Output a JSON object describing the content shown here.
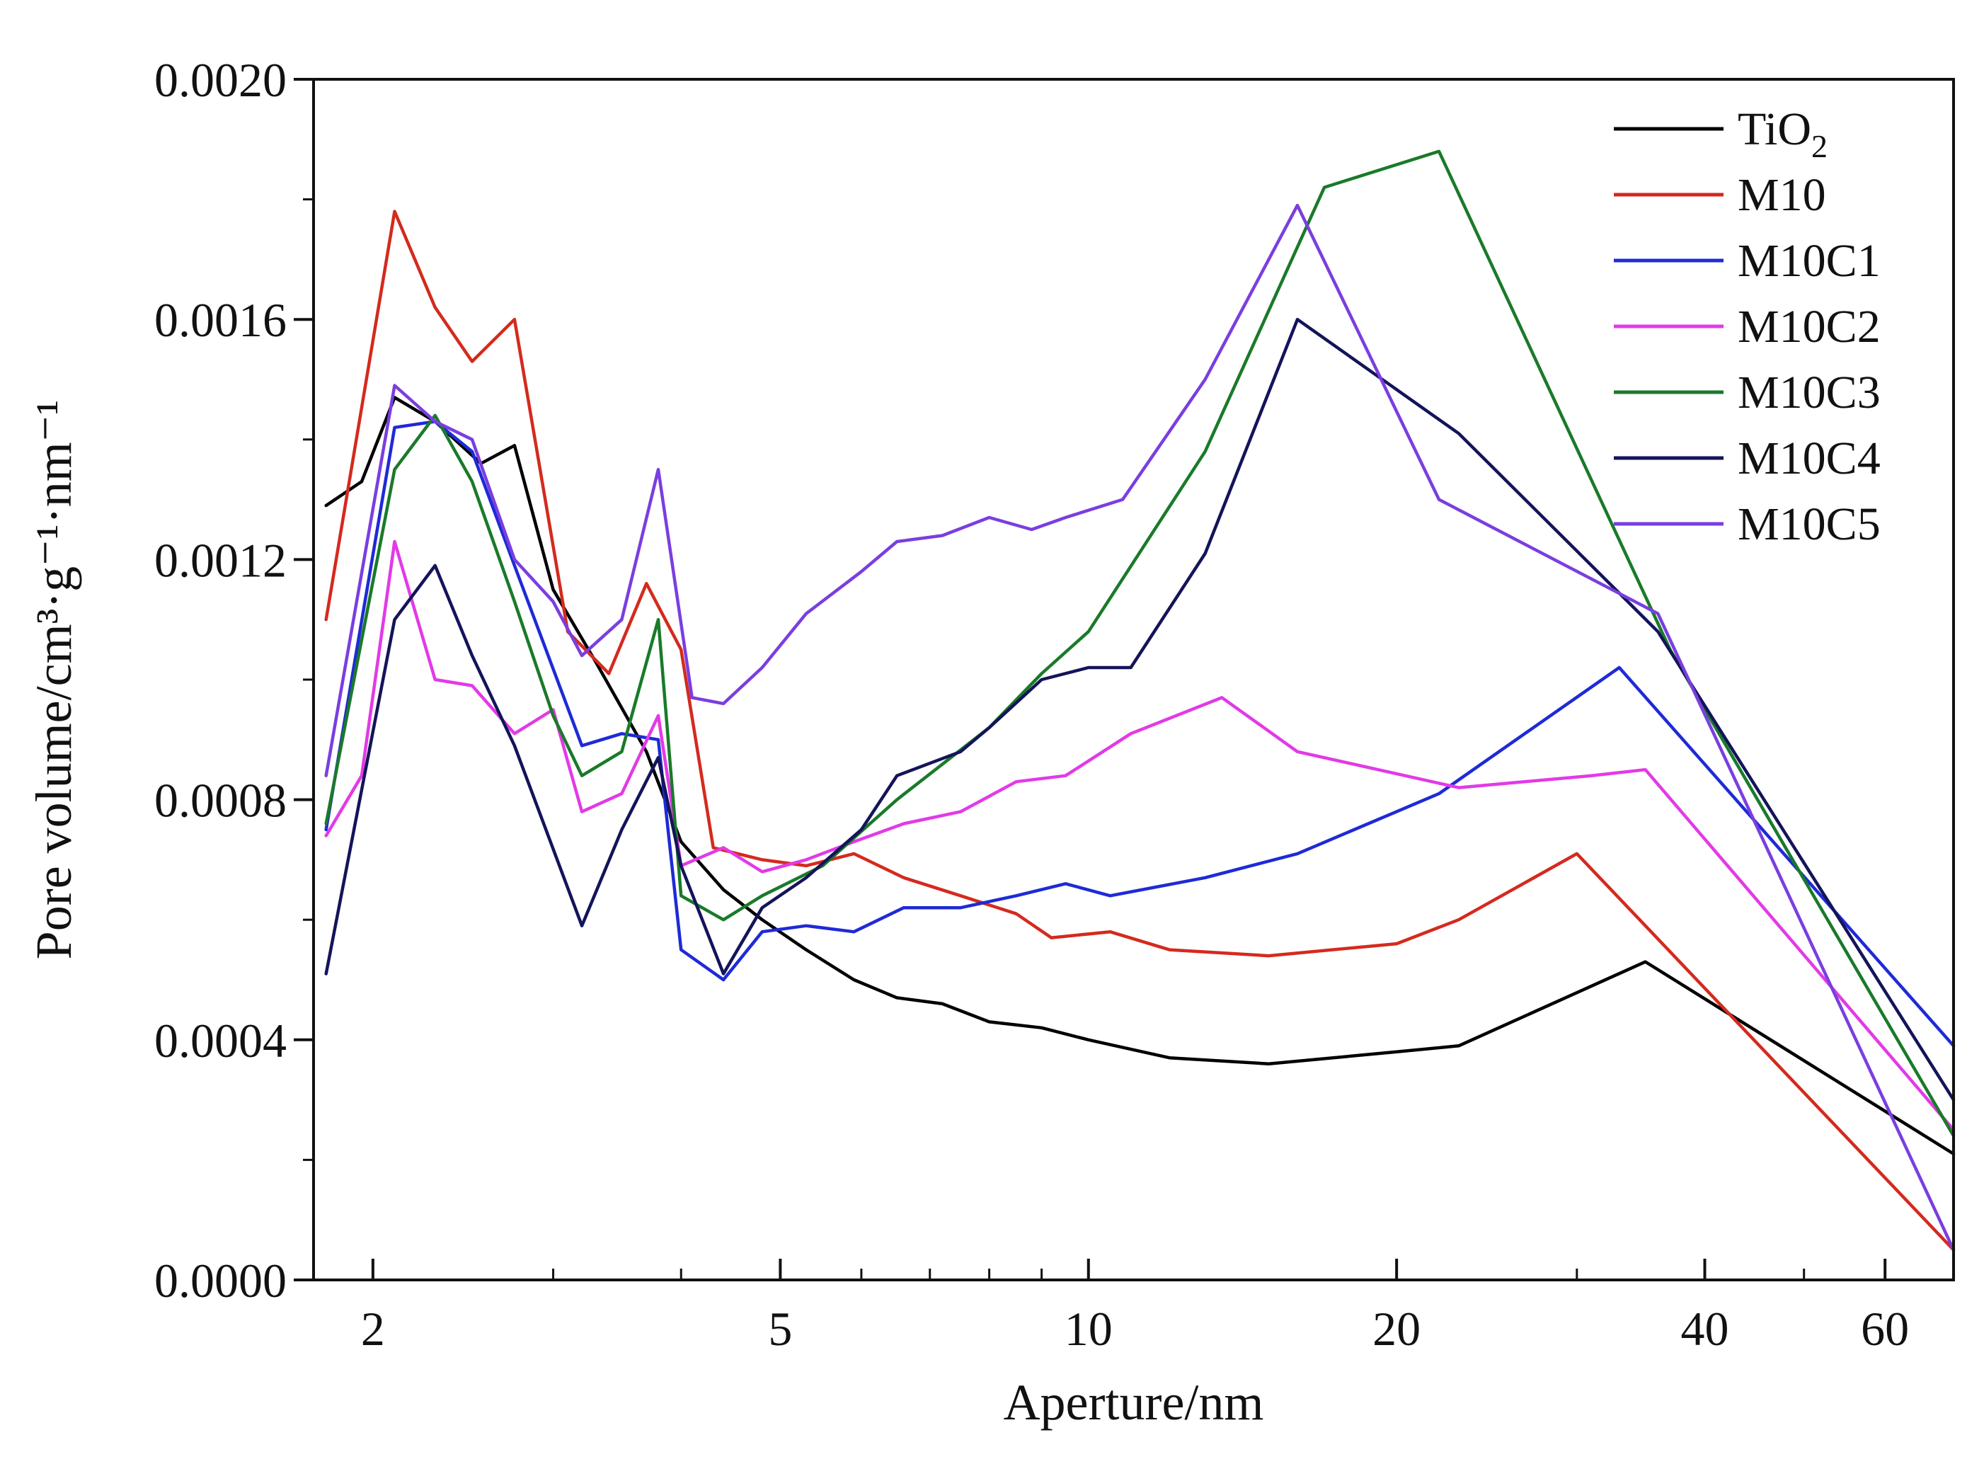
{
  "chart_data": {
    "type": "line",
    "xscale": "log",
    "xlabel": "Aperture/nm",
    "ylabel": "Pore volume/cm³·g⁻¹·nm⁻¹",
    "xlim": [
      1.75,
      70
    ],
    "ylim": [
      0,
      0.002
    ],
    "x_ticks": [
      2,
      5,
      10,
      20,
      40,
      60
    ],
    "x_tick_labels": [
      "2",
      "5",
      "10",
      "20",
      "40",
      "60"
    ],
    "x_minor_ticks": [
      3,
      4,
      6,
      7,
      8,
      9,
      30,
      50
    ],
    "y_ticks": [
      0,
      0.0004,
      0.0008,
      0.0012,
      0.0016,
      0.002
    ],
    "y_tick_labels": [
      "0.0000",
      "0.0004",
      "0.0008",
      "0.0012",
      "0.0016",
      "0.0020"
    ],
    "y_minor_ticks": [
      0.0002,
      0.0006,
      0.001,
      0.0014,
      0.0018
    ],
    "legend_position": "top-right",
    "series": [
      {
        "name": "TiO",
        "sub": "2",
        "color": "#000000",
        "points": [
          [
            1.8,
            0.00129
          ],
          [
            1.95,
            0.00133
          ],
          [
            2.1,
            0.00147
          ],
          [
            2.3,
            0.00143
          ],
          [
            2.55,
            0.00136
          ],
          [
            2.75,
            0.00139
          ],
          [
            3.0,
            0.00115
          ],
          [
            3.3,
            0.00103
          ],
          [
            3.7,
            0.00088
          ],
          [
            4.0,
            0.00073
          ],
          [
            4.4,
            0.00065
          ],
          [
            4.8,
            0.0006
          ],
          [
            5.3,
            0.00055
          ],
          [
            5.9,
            0.0005
          ],
          [
            6.5,
            0.00047
          ],
          [
            7.2,
            0.00046
          ],
          [
            8.0,
            0.00043
          ],
          [
            9.0,
            0.00042
          ],
          [
            10.0,
            0.0004
          ],
          [
            12.0,
            0.00037
          ],
          [
            15.0,
            0.00036
          ],
          [
            20.0,
            0.00038
          ],
          [
            23.0,
            0.00039
          ],
          [
            35.0,
            0.00053
          ],
          [
            70.0,
            0.00021
          ]
        ]
      },
      {
        "name": "M10",
        "color": "#d42a1e",
        "points": [
          [
            1.8,
            0.0011
          ],
          [
            2.1,
            0.00178
          ],
          [
            2.3,
            0.00162
          ],
          [
            2.5,
            0.00153
          ],
          [
            2.75,
            0.0016
          ],
          [
            3.1,
            0.00108
          ],
          [
            3.4,
            0.00101
          ],
          [
            3.7,
            0.00116
          ],
          [
            4.0,
            0.00105
          ],
          [
            4.3,
            0.00072
          ],
          [
            4.8,
            0.0007
          ],
          [
            5.3,
            0.00069
          ],
          [
            5.9,
            0.00071
          ],
          [
            6.6,
            0.00067
          ],
          [
            7.5,
            0.00064
          ],
          [
            8.5,
            0.00061
          ],
          [
            9.2,
            0.00057
          ],
          [
            10.5,
            0.00058
          ],
          [
            12.0,
            0.00055
          ],
          [
            15.0,
            0.00054
          ],
          [
            20.0,
            0.00056
          ],
          [
            23.0,
            0.0006
          ],
          [
            30.0,
            0.00071
          ],
          [
            70.0,
            5e-05
          ]
        ]
      },
      {
        "name": "M10C1",
        "color": "#1f2ad6",
        "points": [
          [
            1.8,
            0.00075
          ],
          [
            2.1,
            0.00142
          ],
          [
            2.3,
            0.00143
          ],
          [
            2.5,
            0.00138
          ],
          [
            2.75,
            0.00119
          ],
          [
            3.2,
            0.00089
          ],
          [
            3.5,
            0.00091
          ],
          [
            3.8,
            0.0009
          ],
          [
            4.0,
            0.00055
          ],
          [
            4.4,
            0.0005
          ],
          [
            4.8,
            0.00058
          ],
          [
            5.3,
            0.00059
          ],
          [
            5.9,
            0.00058
          ],
          [
            6.6,
            0.00062
          ],
          [
            7.5,
            0.00062
          ],
          [
            8.5,
            0.00064
          ],
          [
            9.5,
            0.00066
          ],
          [
            10.5,
            0.00064
          ],
          [
            13.0,
            0.00067
          ],
          [
            16.0,
            0.00071
          ],
          [
            22.0,
            0.00081
          ],
          [
            33.0,
            0.00102
          ],
          [
            70.0,
            0.00039
          ]
        ]
      },
      {
        "name": "M10C2",
        "color": "#e23ae6",
        "points": [
          [
            1.8,
            0.00074
          ],
          [
            1.95,
            0.00084
          ],
          [
            2.1,
            0.00123
          ],
          [
            2.3,
            0.001
          ],
          [
            2.5,
            0.00099
          ],
          [
            2.75,
            0.00091
          ],
          [
            3.0,
            0.00095
          ],
          [
            3.2,
            0.00078
          ],
          [
            3.5,
            0.00081
          ],
          [
            3.8,
            0.00094
          ],
          [
            4.0,
            0.00069
          ],
          [
            4.4,
            0.00072
          ],
          [
            4.8,
            0.00068
          ],
          [
            5.3,
            0.0007
          ],
          [
            5.9,
            0.00073
          ],
          [
            6.6,
            0.00076
          ],
          [
            7.5,
            0.00078
          ],
          [
            8.5,
            0.00083
          ],
          [
            9.5,
            0.00084
          ],
          [
            11.0,
            0.00091
          ],
          [
            13.5,
            0.00097
          ],
          [
            16.0,
            0.00088
          ],
          [
            23.0,
            0.00082
          ],
          [
            31.0,
            0.00084
          ],
          [
            35.0,
            0.00085
          ],
          [
            70.0,
            0.00025
          ]
        ]
      },
      {
        "name": "M10C3",
        "color": "#1a7a2a",
        "points": [
          [
            1.8,
            0.00076
          ],
          [
            2.1,
            0.00135
          ],
          [
            2.3,
            0.00144
          ],
          [
            2.5,
            0.00133
          ],
          [
            2.75,
            0.00113
          ],
          [
            3.0,
            0.00094
          ],
          [
            3.2,
            0.00084
          ],
          [
            3.5,
            0.00088
          ],
          [
            3.8,
            0.0011
          ],
          [
            4.0,
            0.00064
          ],
          [
            4.4,
            0.0006
          ],
          [
            4.8,
            0.00064
          ],
          [
            5.5,
            0.00069
          ],
          [
            6.5,
            0.0008
          ],
          [
            8.0,
            0.00092
          ],
          [
            9.0,
            0.00101
          ],
          [
            10.0,
            0.00108
          ],
          [
            13.0,
            0.00138
          ],
          [
            17.0,
            0.00182
          ],
          [
            22.0,
            0.00188
          ],
          [
            37.0,
            0.00105
          ],
          [
            70.0,
            0.00024
          ]
        ]
      },
      {
        "name": "M10C4",
        "color": "#14145a",
        "points": [
          [
            1.8,
            0.00051
          ],
          [
            2.1,
            0.0011
          ],
          [
            2.3,
            0.00119
          ],
          [
            2.5,
            0.00104
          ],
          [
            2.75,
            0.00089
          ],
          [
            3.2,
            0.00059
          ],
          [
            3.5,
            0.00075
          ],
          [
            3.8,
            0.00087
          ],
          [
            4.0,
            0.00069
          ],
          [
            4.4,
            0.00051
          ],
          [
            4.8,
            0.00062
          ],
          [
            5.3,
            0.00067
          ],
          [
            6.0,
            0.00075
          ],
          [
            6.5,
            0.00084
          ],
          [
            7.5,
            0.00088
          ],
          [
            8.0,
            0.00092
          ],
          [
            9.0,
            0.001
          ],
          [
            10.0,
            0.00102
          ],
          [
            11.0,
            0.00102
          ],
          [
            13.0,
            0.00121
          ],
          [
            16.0,
            0.0016
          ],
          [
            23.0,
            0.00141
          ],
          [
            36.0,
            0.00108
          ],
          [
            70.0,
            0.0003
          ]
        ]
      },
      {
        "name": "M10C5",
        "color": "#7a3ee0",
        "points": [
          [
            1.8,
            0.00084
          ],
          [
            2.1,
            0.00149
          ],
          [
            2.3,
            0.00143
          ],
          [
            2.5,
            0.0014
          ],
          [
            2.75,
            0.0012
          ],
          [
            3.0,
            0.00113
          ],
          [
            3.2,
            0.00104
          ],
          [
            3.5,
            0.0011
          ],
          [
            3.8,
            0.00135
          ],
          [
            4.1,
            0.00097
          ],
          [
            4.4,
            0.00096
          ],
          [
            4.8,
            0.00102
          ],
          [
            5.3,
            0.00111
          ],
          [
            6.0,
            0.00118
          ],
          [
            6.5,
            0.00123
          ],
          [
            7.2,
            0.00124
          ],
          [
            8.0,
            0.00127
          ],
          [
            8.8,
            0.00125
          ],
          [
            9.5,
            0.00127
          ],
          [
            10.8,
            0.0013
          ],
          [
            13.0,
            0.0015
          ],
          [
            16.0,
            0.00179
          ],
          [
            22.0,
            0.0013
          ],
          [
            36.0,
            0.00111
          ],
          [
            70.0,
            5e-05
          ]
        ]
      }
    ]
  }
}
